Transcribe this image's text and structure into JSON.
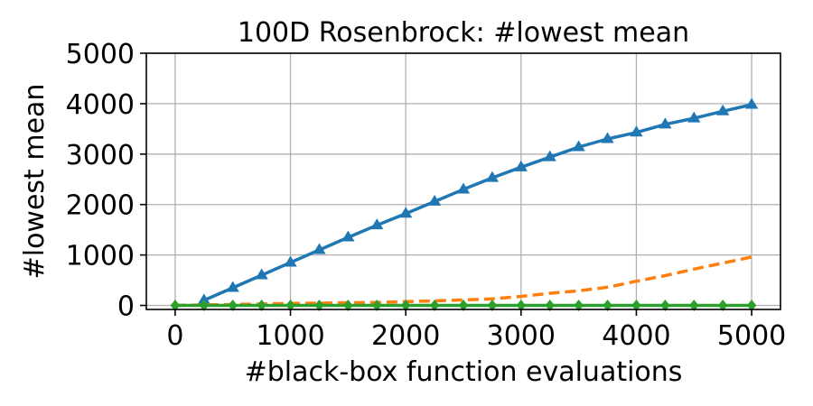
{
  "chart_data": {
    "type": "line",
    "title": "100D Rosenbrock: #lowest mean",
    "xlabel": "#black-box function evaluations",
    "ylabel": "#lowest mean",
    "xlim": [
      -250,
      5250
    ],
    "ylim": [
      -80,
      5000
    ],
    "x_ticks": [
      0,
      1000,
      2000,
      3000,
      4000,
      5000
    ],
    "y_ticks": [
      0,
      1000,
      2000,
      3000,
      4000,
      5000
    ],
    "x_tick_labels": [
      "0",
      "1000",
      "2000",
      "3000",
      "4000",
      "5000"
    ],
    "y_tick_labels": [
      "0",
      "1000",
      "2000",
      "3000",
      "4000",
      "5000"
    ],
    "grid": true,
    "legend": "none",
    "series": [
      {
        "color": "#1f77b4",
        "line_style": "solid",
        "marker": "triangle",
        "x": [
          250,
          500,
          750,
          1000,
          1250,
          1500,
          1750,
          2000,
          2250,
          2500,
          2750,
          3000,
          3250,
          3500,
          3750,
          4000,
          4250,
          4500,
          4750,
          5000
        ],
        "values": [
          100,
          350,
          600,
          850,
          1100,
          1350,
          1590,
          1820,
          2060,
          2300,
          2530,
          2740,
          2940,
          3140,
          3300,
          3430,
          3590,
          3710,
          3850,
          3980
        ]
      },
      {
        "color": "#ff7f0e",
        "line_style": "dashed",
        "marker": "none",
        "x": [
          0,
          250,
          500,
          750,
          1000,
          1250,
          1500,
          1750,
          2000,
          2250,
          2500,
          2750,
          3000,
          3250,
          3500,
          3750,
          4000,
          4250,
          4500,
          4750,
          5000
        ],
        "values": [
          0,
          10,
          20,
          30,
          40,
          45,
          55,
          60,
          75,
          90,
          110,
          130,
          180,
          240,
          290,
          360,
          480,
          590,
          720,
          840,
          960
        ]
      },
      {
        "color": "#2ca02c",
        "line_style": "solid",
        "marker": "diamond",
        "x": [
          0,
          250,
          500,
          750,
          1000,
          1250,
          1500,
          1750,
          2000,
          2250,
          2500,
          2750,
          3000,
          3250,
          3500,
          3750,
          4000,
          4250,
          4500,
          4750,
          5000
        ],
        "values": [
          0,
          0,
          0,
          0,
          0,
          0,
          0,
          0,
          0,
          0,
          0,
          0,
          0,
          0,
          0,
          0,
          0,
          0,
          0,
          0,
          0
        ]
      }
    ]
  }
}
